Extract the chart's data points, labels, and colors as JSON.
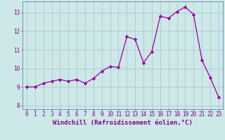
{
  "x": [
    0,
    1,
    2,
    3,
    4,
    5,
    6,
    7,
    8,
    9,
    10,
    11,
    12,
    13,
    14,
    15,
    16,
    17,
    18,
    19,
    20,
    21,
    22,
    23
  ],
  "y": [
    9.0,
    9.0,
    9.2,
    9.3,
    9.4,
    9.3,
    9.4,
    9.2,
    9.45,
    9.85,
    10.1,
    10.05,
    11.7,
    11.55,
    10.3,
    10.9,
    12.8,
    12.7,
    13.05,
    13.3,
    12.9,
    10.45,
    9.5,
    8.45
  ],
  "line_color": "#990099",
  "marker": "D",
  "marker_size": 2.2,
  "bg_color": "#cce8e8",
  "grid_color": "#aabbc8",
  "xlabel": "Windchill (Refroidissement éolien,°C)",
  "xlabel_color": "#880088",
  "ylim": [
    7.8,
    13.6
  ],
  "xlim": [
    -0.5,
    23.5
  ],
  "yticks": [
    8,
    9,
    10,
    11,
    12,
    13
  ],
  "xticks": [
    0,
    1,
    2,
    3,
    4,
    5,
    6,
    7,
    8,
    9,
    10,
    11,
    12,
    13,
    14,
    15,
    16,
    17,
    18,
    19,
    20,
    21,
    22,
    23
  ],
  "tick_color": "#880088",
  "tick_fontsize": 5.5,
  "xlabel_fontsize": 6.5,
  "spine_color": "#6688aa"
}
